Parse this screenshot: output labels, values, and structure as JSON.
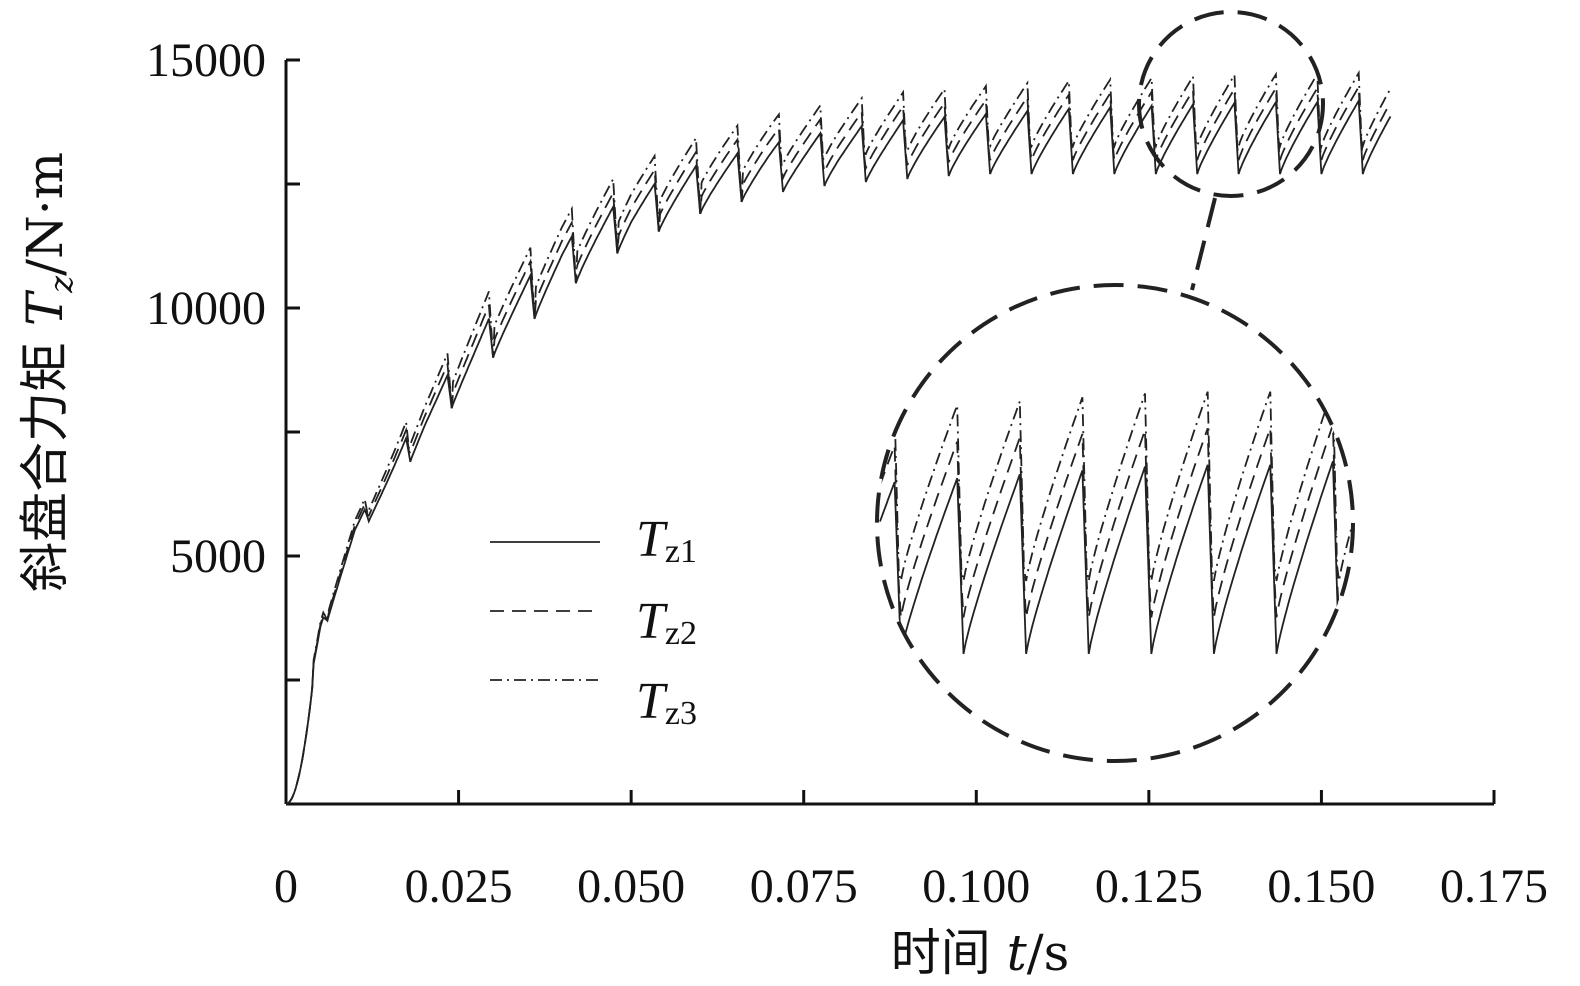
{
  "chart_data": {
    "type": "line",
    "title": "",
    "xlabel": {
      "prefix": "时间 ",
      "var": "t",
      "unit": "/s"
    },
    "ylabel": {
      "prefix": "斜盘合力矩 ",
      "var": "T",
      "sub": "z",
      "unit": "/N·m"
    },
    "xlim": [
      0,
      0.175
    ],
    "ylim": [
      0,
      15000
    ],
    "x_ticks": [
      {
        "value": 0,
        "label": "0"
      },
      {
        "value": 0.025,
        "label": "0.025"
      },
      {
        "value": 0.05,
        "label": "0.050"
      },
      {
        "value": 0.075,
        "label": "0.075"
      },
      {
        "value": 0.1,
        "label": "0.100"
      },
      {
        "value": 0.125,
        "label": "0.125"
      },
      {
        "value": 0.15,
        "label": "0.150"
      },
      {
        "value": 0.175,
        "label": "0.175"
      }
    ],
    "y_ticks": [
      {
        "value": 2500,
        "label": ""
      },
      {
        "value": 5000,
        "label": "5000"
      },
      {
        "value": 7500,
        "label": ""
      },
      {
        "value": 10000,
        "label": "10000"
      },
      {
        "value": 12500,
        "label": ""
      },
      {
        "value": 15000,
        "label": "15000"
      }
    ],
    "grid": false,
    "legend_position": "center-left",
    "series": [
      {
        "name_main": "T",
        "name_sub": "z1",
        "style": "solid",
        "offset": 0
      },
      {
        "name_main": "T",
        "name_sub": "z2",
        "style": "dashed",
        "offset": 280
      },
      {
        "name_main": "T",
        "name_sub": "z3",
        "style": "dashdot",
        "offset": 560
      }
    ],
    "envelope": {
      "t": [
        0,
        0.005,
        0.01,
        0.02,
        0.03,
        0.04,
        0.05,
        0.06,
        0.07,
        0.08,
        0.09,
        0.1,
        0.11,
        0.12,
        0.13,
        0.14,
        0.15,
        0.16
      ],
      "peak": [
        0,
        3600,
        5600,
        8000,
        9900,
        11300,
        12300,
        12900,
        13300,
        13600,
        13800,
        13900,
        14000,
        14050,
        14100,
        14150,
        14150,
        14200
      ],
      "trough": [
        0,
        3300,
        5300,
        7300,
        9000,
        10300,
        11300,
        11900,
        12300,
        12500,
        12600,
        12700,
        12700,
        12700,
        12700,
        12700,
        12700,
        12700
      ]
    },
    "tooth_period_s": 0.006,
    "t_end_s": 0.16,
    "zoom": {
      "source_circle": {
        "t": 0.137,
        "value": 13800
      },
      "t_range": [
        0.112,
        0.158
      ],
      "value_range": [
        12500,
        14800
      ]
    }
  }
}
